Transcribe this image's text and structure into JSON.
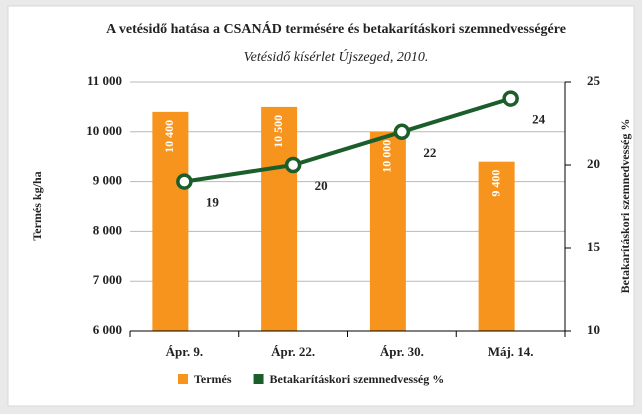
{
  "chart_data": {
    "type": "bar",
    "title": "A vetésidő hatása a CSANÁD termésére és betakarításkori szemnedvességére",
    "subtitle": "Vetésidő kísérlet Újszeged, 2010.",
    "y_label": "Termés kg/ha",
    "y2_label": "Betakarításkori szemnedvesség %",
    "categories": [
      "Ápr. 9.",
      "Ápr. 22.",
      "Ápr. 30.",
      "Máj. 14."
    ],
    "series": [
      {
        "name": "Termés",
        "type": "bar",
        "color": "#f7941d",
        "values": [
          10400,
          10500,
          10000,
          9400
        ],
        "value_labels": [
          "10 400",
          "10 500",
          "10 000",
          "9 400"
        ]
      },
      {
        "name": "Betakarításkori szemnedvesség %",
        "type": "line",
        "color": "#1b5e2b",
        "axis": "y2",
        "values": [
          19,
          20,
          22,
          24
        ]
      }
    ],
    "ylim": [
      6000,
      11000
    ],
    "yticks": [
      {
        "value": 6000,
        "label": "6 000"
      },
      {
        "value": 7000,
        "label": "7 000"
      },
      {
        "value": 8000,
        "label": "8 000"
      },
      {
        "value": 9000,
        "label": "9 000"
      },
      {
        "value": 10000,
        "label": "10 000"
      },
      {
        "value": 11000,
        "label": "11 000"
      }
    ],
    "y2lim": [
      10,
      25
    ],
    "y2ticks": [
      10,
      15,
      20,
      25
    ],
    "grid": true
  }
}
